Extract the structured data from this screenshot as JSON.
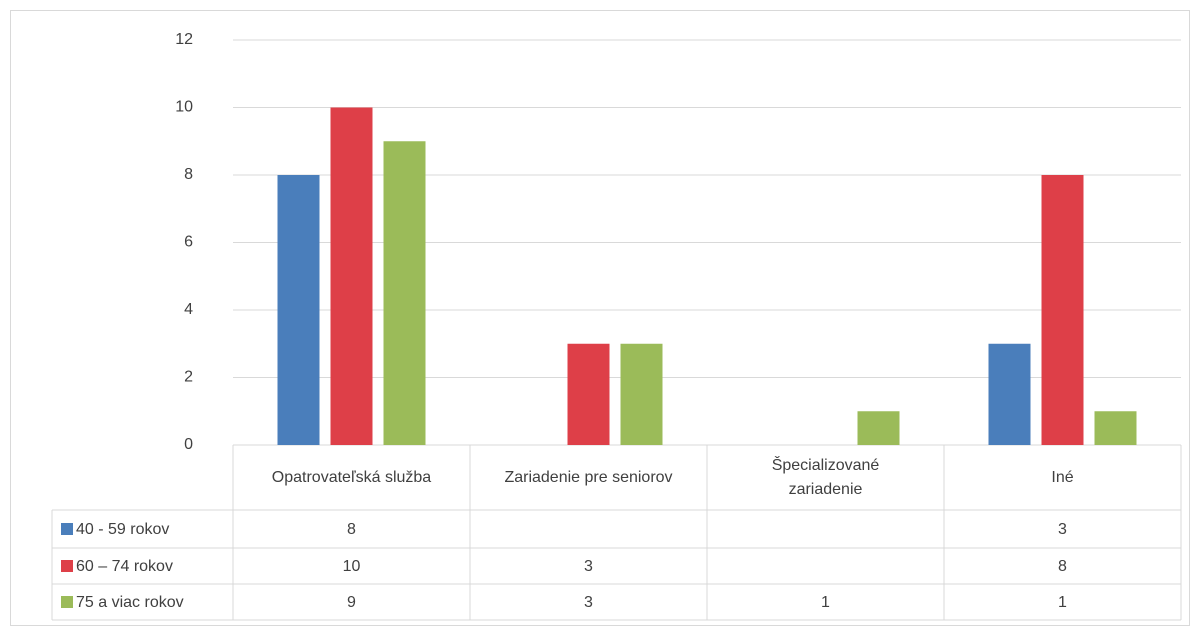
{
  "chart_data": {
    "type": "bar",
    "categories": [
      "Opatrovateľská služba",
      "Zariadenie pre seniorov",
      "Špecializované zariadenie",
      "Iné"
    ],
    "series": [
      {
        "name": "40 - 59 rokov",
        "color": "#4a7ebb",
        "values": [
          8,
          null,
          null,
          3
        ]
      },
      {
        "name": "60 – 74 rokov",
        "color": "#de3f48",
        "values": [
          10,
          3,
          null,
          8
        ]
      },
      {
        "name": "75 a viac rokov",
        "color": "#9bbb59",
        "values": [
          9,
          3,
          1,
          1
        ]
      }
    ],
    "ylim": [
      0,
      12
    ],
    "yticks": [
      0,
      2,
      4,
      6,
      8,
      10,
      12
    ],
    "grid": true,
    "legend": "data-table"
  }
}
